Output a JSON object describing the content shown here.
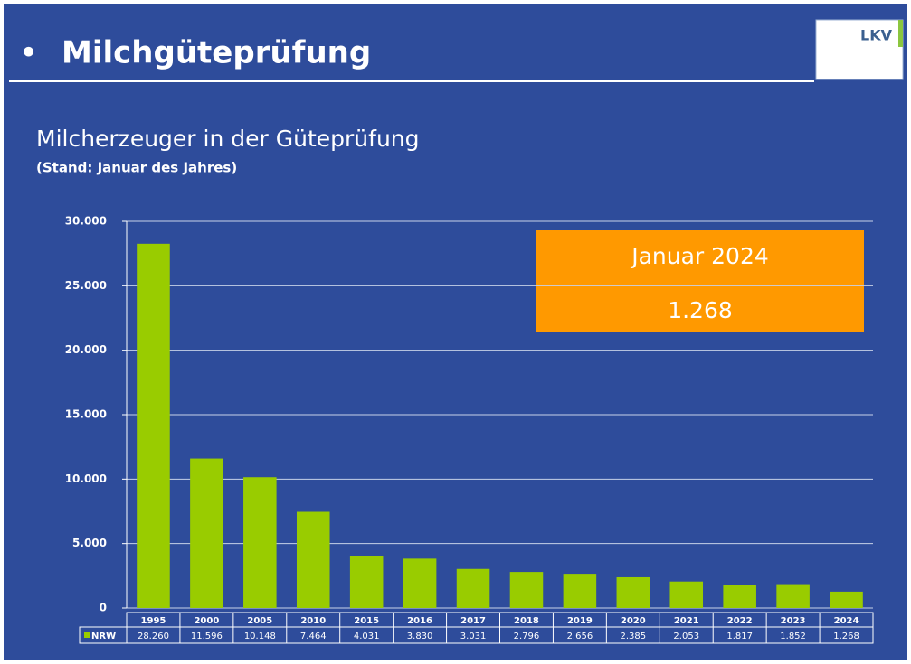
{
  "header": {
    "bullet": "•",
    "title": "Milchgüteprüfung",
    "logo": "LKV"
  },
  "chart_data": {
    "type": "bar",
    "title": "Milcherzeuger in der Güteprüfung",
    "subtitle": "(Stand: Januar des Jahres)",
    "annotations": [
      "Januar 2024",
      "1.268"
    ],
    "categories": [
      "1995",
      "2000",
      "2005",
      "2010",
      "2015",
      "2016",
      "2017",
      "2018",
      "2019",
      "2020",
      "2021",
      "2022",
      "2023",
      "2024"
    ],
    "series": [
      {
        "name": "NRW",
        "color": "#99cc00",
        "values": [
          28260,
          11596,
          10148,
          7464,
          4031,
          3830,
          3031,
          2796,
          2656,
          2385,
          2053,
          1817,
          1852,
          1268
        ],
        "value_labels": [
          "28.260",
          "11.596",
          "10.148",
          "7.464",
          "4.031",
          "3.830",
          "3.031",
          "2.796",
          "2.656",
          "2.385",
          "2.053",
          "1.817",
          "1.852",
          "1.268"
        ]
      }
    ],
    "ylim": [
      0,
      30000
    ],
    "yticks": [
      0,
      {
        "value": 5000,
        "label": "5.000"
      },
      {
        "value": 10000,
        "label": "10.000"
      },
      {
        "value": 15000,
        "label": "15.000"
      },
      {
        "value": 20000,
        "label": "20.000"
      },
      {
        "value": 25000,
        "label": "25.000"
      },
      {
        "value": 30000,
        "label": "30.000"
      }
    ],
    "grid": true
  }
}
